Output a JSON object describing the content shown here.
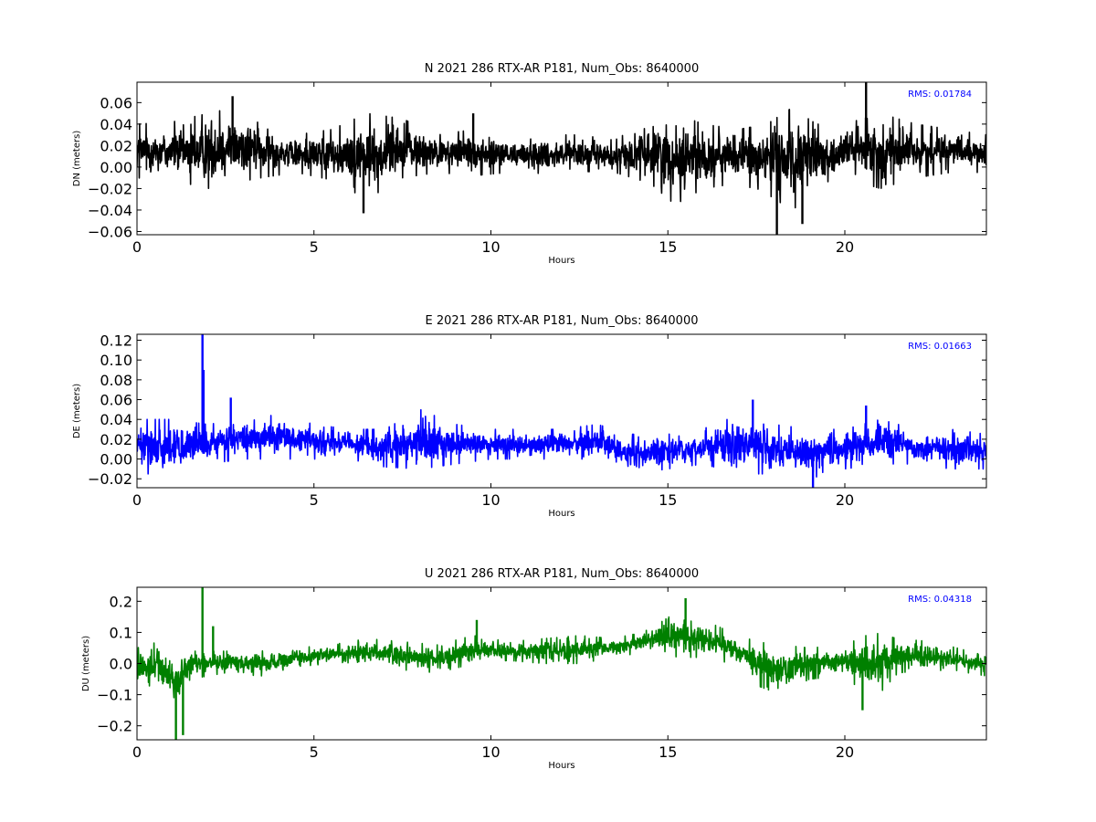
{
  "chart_data": [
    {
      "type": "line",
      "title": "N 2021 286 RTX-AR  P181, Num_Obs: 8640000",
      "xlabel": "Hours",
      "ylabel": "DN (meters)",
      "xlim": [
        0,
        24
      ],
      "ylim": [
        -0.063,
        0.079
      ],
      "xticks": [
        "0",
        "5",
        "10",
        "15",
        "20"
      ],
      "xtick_values": [
        0,
        5,
        10,
        15,
        20
      ],
      "yticks": [
        "−0.06",
        "−0.04",
        "−0.02",
        "0.00",
        "0.02",
        "0.04",
        "0.06"
      ],
      "ytick_values": [
        -0.06,
        -0.04,
        -0.02,
        0,
        0.02,
        0.04,
        0.06
      ],
      "annotation": "RMS:  0.01784",
      "annotation_color": "#0000ff",
      "series_color": "#000000",
      "grid": false,
      "envelope": [
        [
          0,
          -0.01,
          0.04
        ],
        [
          1,
          -0.012,
          0.042
        ],
        [
          2,
          -0.02,
          0.05
        ],
        [
          2.7,
          -0.015,
          0.055
        ],
        [
          3.5,
          -0.01,
          0.04
        ],
        [
          4.5,
          -0.005,
          0.03
        ],
        [
          5.5,
          -0.012,
          0.035
        ],
        [
          6.5,
          -0.03,
          0.05
        ],
        [
          7.5,
          -0.01,
          0.045
        ],
        [
          8.5,
          -0.005,
          0.03
        ],
        [
          9.5,
          -0.008,
          0.035
        ],
        [
          10.5,
          -0.005,
          0.028
        ],
        [
          11.5,
          -0.006,
          0.03
        ],
        [
          12.5,
          -0.004,
          0.03
        ],
        [
          13.5,
          -0.005,
          0.025
        ],
        [
          14.5,
          -0.015,
          0.045
        ],
        [
          15.2,
          -0.035,
          0.05
        ],
        [
          16,
          -0.02,
          0.04
        ],
        [
          17,
          -0.015,
          0.035
        ],
        [
          17.8,
          -0.025,
          0.04
        ],
        [
          18.5,
          -0.04,
          0.055
        ],
        [
          19.2,
          -0.025,
          0.04
        ],
        [
          20,
          -0.01,
          0.04
        ],
        [
          21,
          -0.02,
          0.05
        ],
        [
          22,
          -0.01,
          0.04
        ],
        [
          23,
          -0.005,
          0.035
        ],
        [
          24,
          -0.005,
          0.03
        ]
      ],
      "spikes": [
        [
          2.7,
          0.066
        ],
        [
          9.5,
          0.05
        ],
        [
          18.08,
          -0.063
        ],
        [
          20.6,
          0.079
        ],
        [
          18.8,
          -0.053
        ],
        [
          6.4,
          -0.043
        ]
      ]
    },
    {
      "type": "line",
      "title": "E 2021 286 RTX-AR  P181, Num_Obs: 8640000",
      "xlabel": "Hours",
      "ylabel": "DE (meters)",
      "xlim": [
        0,
        24
      ],
      "ylim": [
        -0.029,
        0.126
      ],
      "xticks": [
        "0",
        "5",
        "10",
        "15",
        "20"
      ],
      "xtick_values": [
        0,
        5,
        10,
        15,
        20
      ],
      "yticks": [
        "−0.02",
        "0.00",
        "0.02",
        "0.04",
        "0.06",
        "0.08",
        "0.10",
        "0.12"
      ],
      "ytick_values": [
        -0.02,
        0,
        0.02,
        0.04,
        0.06,
        0.08,
        0.1,
        0.12
      ],
      "annotation": "RMS:  0.01663",
      "annotation_color": "#0000ff",
      "series_color": "#0000ff",
      "grid": false,
      "envelope": [
        [
          0,
          -0.015,
          0.04
        ],
        [
          1,
          -0.015,
          0.04
        ],
        [
          2,
          -0.005,
          0.035
        ],
        [
          3,
          0,
          0.04
        ],
        [
          4,
          0,
          0.045
        ],
        [
          5,
          0,
          0.035
        ],
        [
          6,
          0,
          0.03
        ],
        [
          7,
          -0.008,
          0.03
        ],
        [
          8,
          -0.01,
          0.05
        ],
        [
          9,
          -0.005,
          0.035
        ],
        [
          10,
          0,
          0.03
        ],
        [
          11,
          0,
          0.03
        ],
        [
          12,
          0,
          0.03
        ],
        [
          13,
          0,
          0.035
        ],
        [
          14,
          -0.015,
          0.025
        ],
        [
          15,
          -0.01,
          0.025
        ],
        [
          16,
          -0.005,
          0.03
        ],
        [
          17,
          -0.015,
          0.05
        ],
        [
          18,
          -0.015,
          0.035
        ],
        [
          19,
          -0.02,
          0.03
        ],
        [
          20,
          -0.01,
          0.03
        ],
        [
          21,
          -0.005,
          0.04
        ],
        [
          22,
          -0.005,
          0.03
        ],
        [
          23,
          -0.01,
          0.03
        ],
        [
          24,
          -0.01,
          0.025
        ]
      ],
      "spikes": [
        [
          1.85,
          0.126
        ],
        [
          1.88,
          0.09
        ],
        [
          2.65,
          0.062
        ],
        [
          17.4,
          0.06
        ],
        [
          20.6,
          0.054
        ],
        [
          19.1,
          -0.029
        ]
      ]
    },
    {
      "type": "line",
      "title": "U 2021 286 RTX-AR  P181, Num_Obs: 8640000",
      "xlabel": "Hours",
      "ylabel": "DU (meters)",
      "xlim": [
        0,
        24
      ],
      "ylim": [
        -0.245,
        0.245
      ],
      "xticks": [
        "0",
        "5",
        "10",
        "15",
        "20"
      ],
      "xtick_values": [
        0,
        5,
        10,
        15,
        20
      ],
      "yticks": [
        "−0.2",
        "−0.1",
        "0.0",
        "0.1",
        "0.2"
      ],
      "ytick_values": [
        -0.2,
        -0.1,
        0,
        0.1,
        0.2
      ],
      "annotation": "RMS:  0.04318",
      "annotation_color": "#0000ff",
      "series_color": "#008000",
      "grid": false,
      "envelope": [
        [
          0,
          -0.06,
          0.05
        ],
        [
          0.6,
          -0.08,
          0.07
        ],
        [
          1.1,
          -0.15,
          0.03
        ],
        [
          1.5,
          -0.05,
          0.04
        ],
        [
          2.5,
          -0.03,
          0.04
        ],
        [
          3.5,
          -0.04,
          0.04
        ],
        [
          4.5,
          -0.01,
          0.05
        ],
        [
          5.5,
          0,
          0.06
        ],
        [
          6.5,
          -0.01,
          0.08
        ],
        [
          7.5,
          -0.02,
          0.07
        ],
        [
          8.5,
          -0.03,
          0.06
        ],
        [
          9.5,
          0,
          0.09
        ],
        [
          10.5,
          0.01,
          0.07
        ],
        [
          11.5,
          0,
          0.08
        ],
        [
          12.5,
          0,
          0.09
        ],
        [
          13.5,
          0.02,
          0.08
        ],
        [
          14.5,
          0.04,
          0.11
        ],
        [
          15.3,
          0.02,
          0.17
        ],
        [
          16,
          0.02,
          0.14
        ],
        [
          16.8,
          0,
          0.1
        ],
        [
          17.5,
          -0.07,
          0.07
        ],
        [
          18.2,
          -0.1,
          0.06
        ],
        [
          19,
          -0.05,
          0.05
        ],
        [
          20,
          -0.04,
          0.06
        ],
        [
          20.8,
          -0.12,
          0.1
        ],
        [
          21.5,
          -0.03,
          0.08
        ],
        [
          22.5,
          -0.02,
          0.07
        ],
        [
          23.5,
          -0.03,
          0.04
        ],
        [
          24,
          -0.04,
          0.05
        ]
      ],
      "spikes": [
        [
          1.85,
          0.245
        ],
        [
          1.1,
          -0.245
        ],
        [
          1.3,
          -0.23
        ],
        [
          2.15,
          0.12
        ],
        [
          9.6,
          0.14
        ],
        [
          15.5,
          0.21
        ],
        [
          20.5,
          -0.15
        ]
      ]
    }
  ]
}
